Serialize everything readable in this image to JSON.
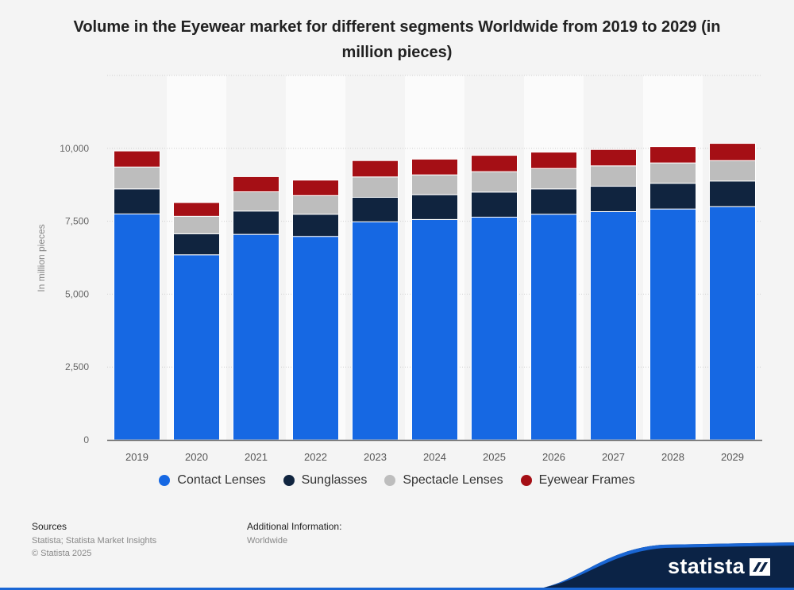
{
  "title": "Volume in the Eyewear market for different segments Worldwide from 2019 to 2029 (in million pieces)",
  "chart_data": {
    "type": "bar",
    "stacked": true,
    "title": "Volume in the Eyewear market for different segments Worldwide from 2019 to 2029 (in million pieces)",
    "xlabel": "",
    "ylabel": "In million pieces",
    "ylim": [
      0,
      12500
    ],
    "yticks": [
      0,
      2500,
      5000,
      7500,
      10000
    ],
    "ytick_labels": [
      "0",
      "2,500",
      "5,000",
      "7,500",
      "10,000"
    ],
    "grid": true,
    "legend_position": "bottom",
    "categories": [
      "2019",
      "2020",
      "2021",
      "2022",
      "2023",
      "2024",
      "2025",
      "2026",
      "2027",
      "2028",
      "2029"
    ],
    "series": [
      {
        "name": "Contact Lenses",
        "color": "#1668e3",
        "values": [
          7750,
          6350,
          7050,
          6980,
          7480,
          7560,
          7640,
          7740,
          7830,
          7920,
          8000
        ]
      },
      {
        "name": "Sunglasses",
        "color": "#10243f",
        "values": [
          860,
          720,
          800,
          760,
          840,
          850,
          860,
          870,
          870,
          880,
          880
        ]
      },
      {
        "name": "Spectacle Lenses",
        "color": "#bdbdbd",
        "values": [
          750,
          600,
          660,
          640,
          700,
          680,
          700,
          700,
          700,
          700,
          700
        ]
      },
      {
        "name": "Eyewear Frames",
        "color": "#a50f15",
        "values": [
          550,
          470,
          520,
          530,
          560,
          540,
          560,
          560,
          560,
          560,
          590
        ]
      }
    ]
  },
  "footer": {
    "sources_label": "Sources",
    "sources_text": "Statista; Statista Market Insights",
    "copyright": "© Statista 2025",
    "additional_label": "Additional Information:",
    "additional_text": "Worldwide"
  },
  "brand": {
    "name": "statista",
    "color": "#0b2346",
    "accent": "#1a66d4",
    "icon": "statista-logo-icon"
  }
}
